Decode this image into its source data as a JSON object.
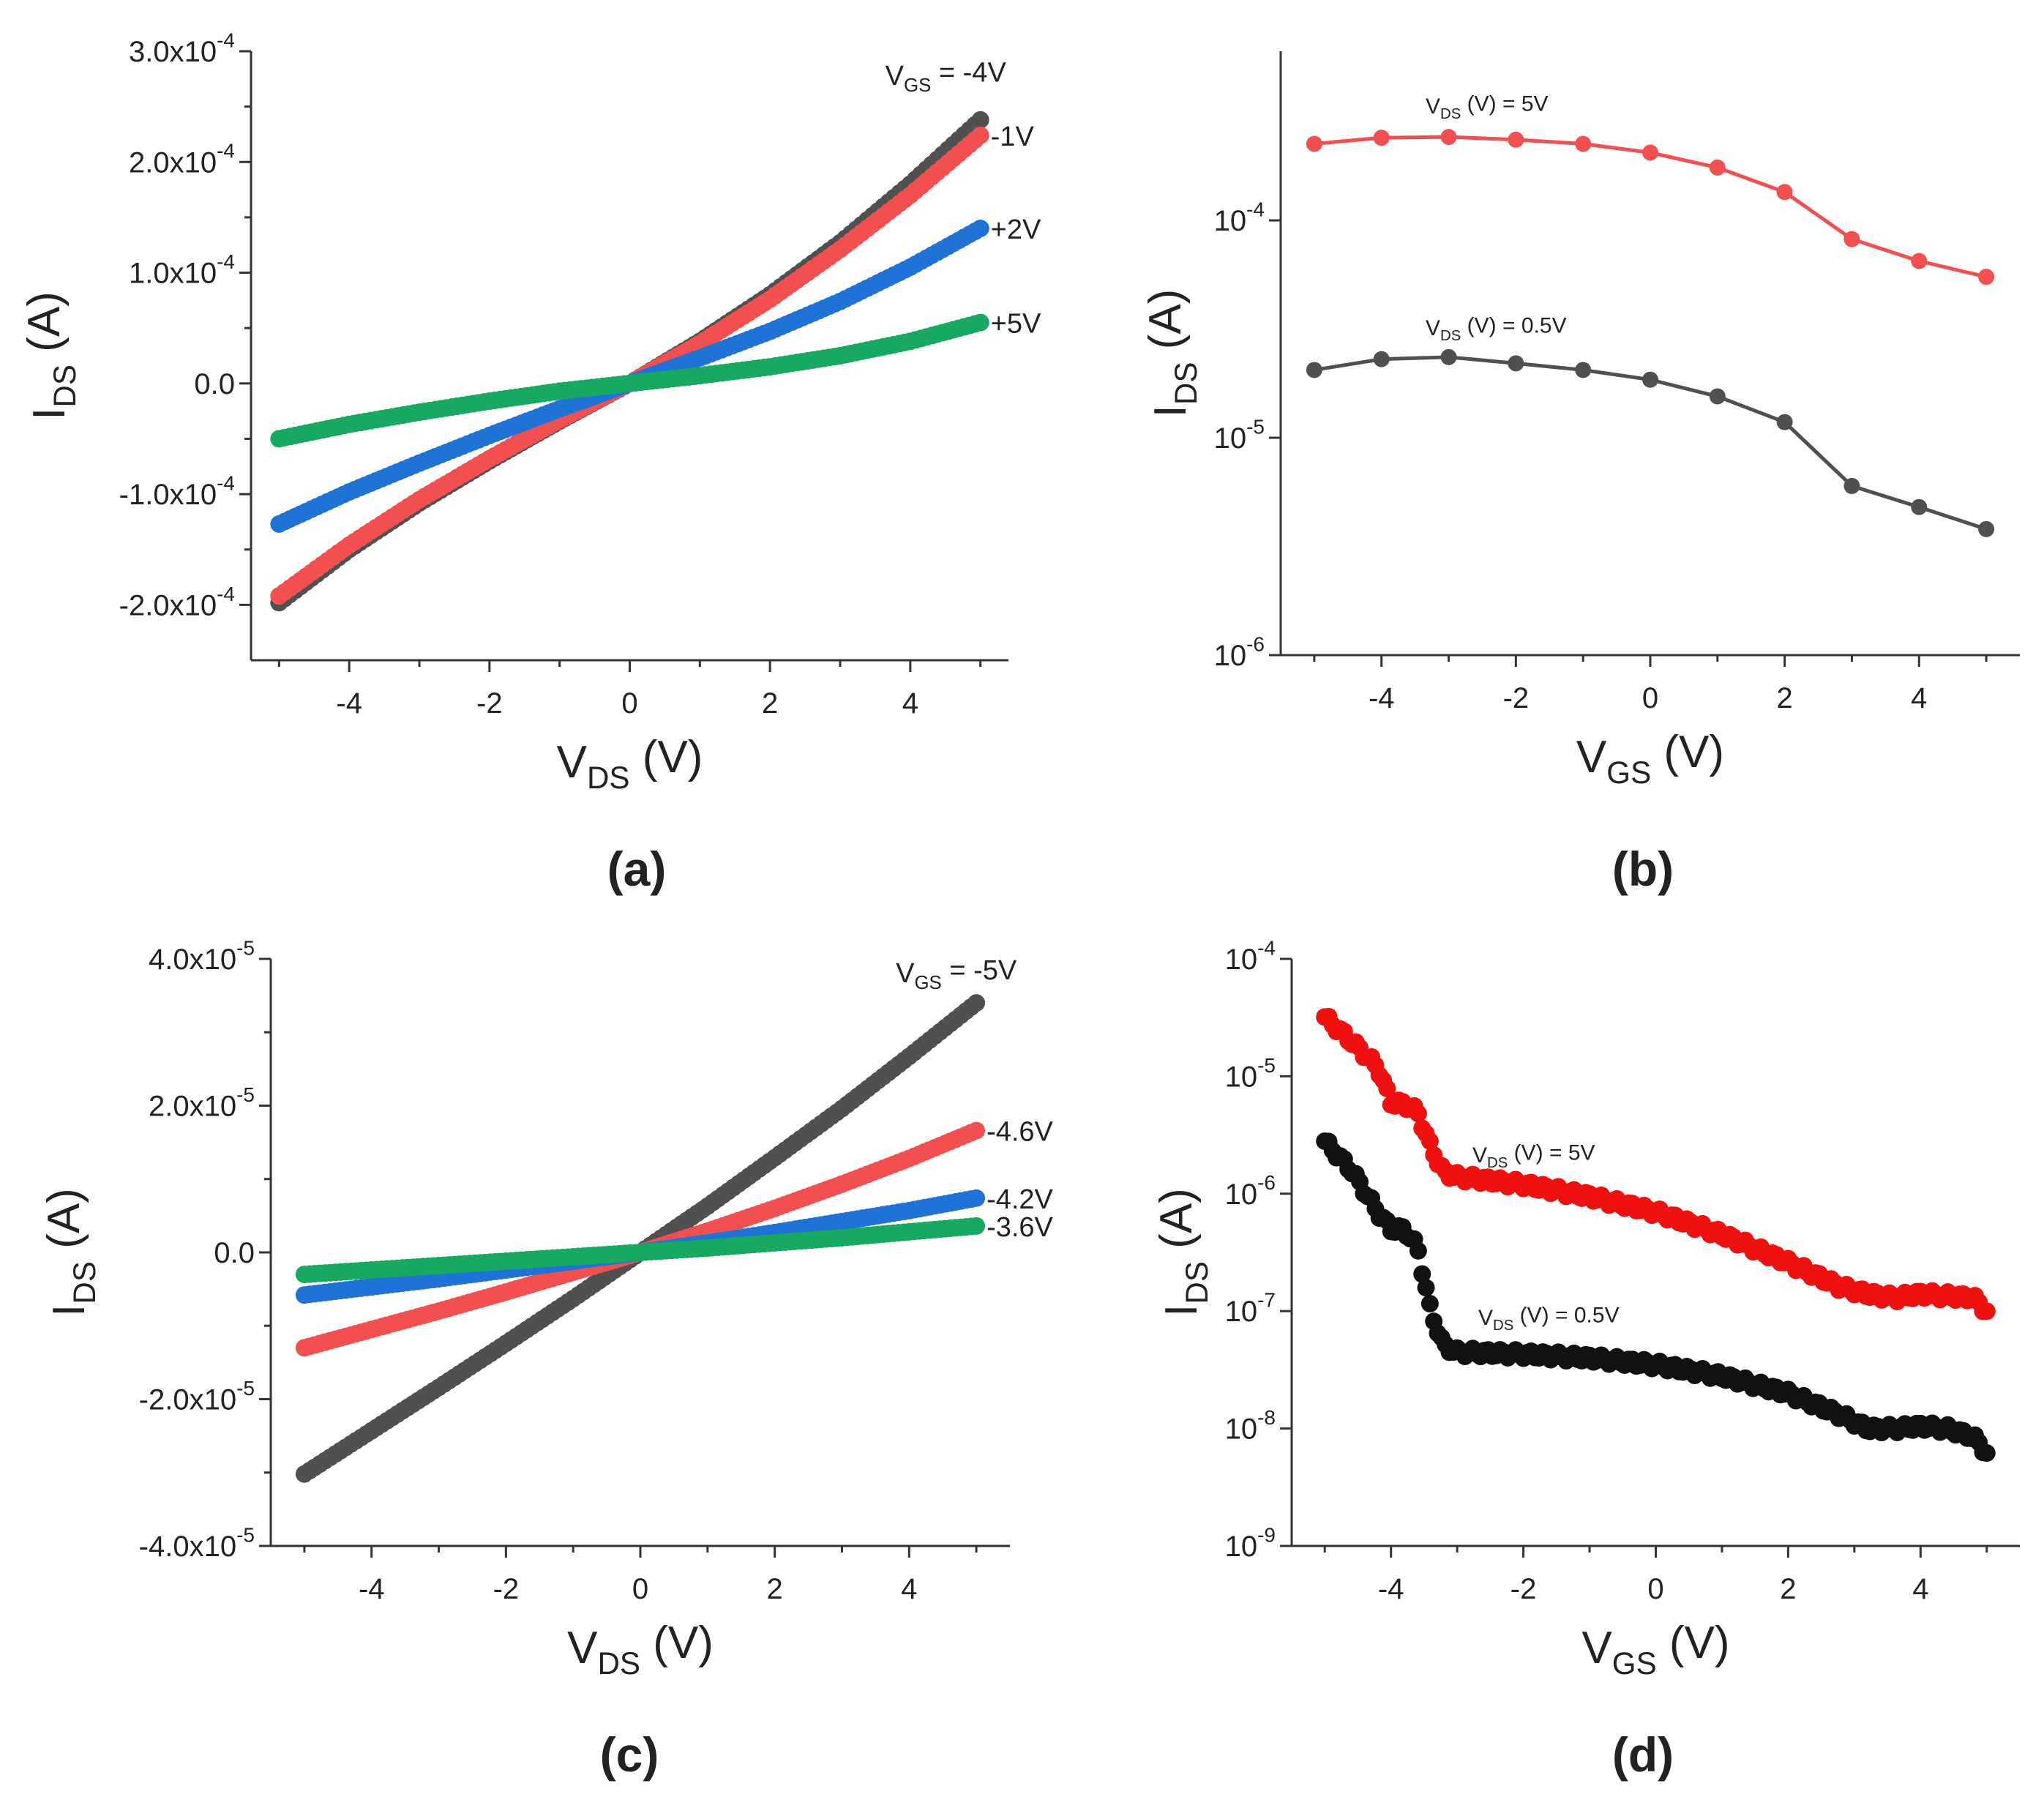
{
  "colors": {
    "black": "#505050",
    "black_d": "#111111",
    "red": "#f25050",
    "red_d": "#ef1010",
    "blue": "#1f73d6",
    "green": "#17a862",
    "axis": "#333333"
  },
  "chart_data": [
    {
      "id": "a",
      "type": "scatter",
      "panel_label": "(a)",
      "xlabel": "V_DS (V)",
      "ylabel": "I_DS (A)",
      "xlim": [
        -5.4,
        5.4
      ],
      "ylim": [
        -0.00025,
        0.0003
      ],
      "yscale": "linear",
      "x_ticks": [
        -4,
        -2,
        0,
        2,
        4
      ],
      "x_tick_labels": [
        "-4",
        "-2",
        "0",
        "2",
        "4"
      ],
      "y_ticks": [
        -0.0002,
        -0.0001,
        0,
        0.0001,
        0.0002,
        0.0003
      ],
      "y_tick_labels": [
        {
          "mantissa": "-2.0x10",
          "exp": "-4"
        },
        {
          "mantissa": "-1.0x10",
          "exp": "-4"
        },
        {
          "mantissa": "0.0",
          "exp": ""
        },
        {
          "mantissa": "1.0x10",
          "exp": "-4"
        },
        {
          "mantissa": "2.0x10",
          "exp": "-4"
        },
        {
          "mantissa": "3.0x10",
          "exp": "-4"
        }
      ],
      "series": [
        {
          "name": "V_GS = -4V",
          "label": "V_GS = -4V",
          "color": "black",
          "x": [
            -5,
            -4,
            -3,
            -2,
            -1,
            0,
            1,
            2,
            3,
            4,
            5
          ],
          "y": [
            -0.000198,
            -0.00015,
            -0.000108,
            -7e-05,
            -3.4e-05,
            0,
            3.8e-05,
            8e-05,
            0.000127,
            0.00018,
            0.000238
          ]
        },
        {
          "name": "-1V",
          "label": "-1V",
          "color": "red",
          "x": [
            -5,
            -4,
            -3,
            -2,
            -1,
            0,
            1,
            2,
            3,
            4,
            5
          ],
          "y": [
            -0.000192,
            -0.000146,
            -0.000105,
            -6.8e-05,
            -3.3e-05,
            0,
            3.6e-05,
            7.6e-05,
            0.000121,
            0.00017,
            0.000224
          ]
        },
        {
          "name": "+2V",
          "label": "+2V",
          "color": "blue",
          "x": [
            -5,
            -4,
            -3,
            -2,
            -1,
            0,
            1,
            2,
            3,
            4,
            5
          ],
          "y": [
            -0.000127,
            -9.8e-05,
            -7.2e-05,
            -4.7e-05,
            -2.3e-05,
            0,
            2.3e-05,
            4.7e-05,
            7.4e-05,
            0.000105,
            0.00014
          ]
        },
        {
          "name": "+5V",
          "label": "+5V",
          "color": "green",
          "x": [
            -5,
            -4,
            -3,
            -2,
            -1,
            0,
            1,
            2,
            3,
            4,
            5
          ],
          "y": [
            -5e-05,
            -3.7e-05,
            -2.6e-05,
            -1.6e-05,
            -7e-06,
            0,
            7e-06,
            1.5e-05,
            2.5e-05,
            3.8e-05,
            5.5e-05
          ]
        }
      ]
    },
    {
      "id": "b",
      "type": "line",
      "panel_label": "(b)",
      "xlabel": "V_GS (V)",
      "ylabel": "I_DS (A)",
      "xlim": [
        -5.5,
        5.5
      ],
      "ylim": [
        1e-06,
        0.0006
      ],
      "yscale": "log",
      "x_ticks": [
        -4,
        -2,
        0,
        2,
        4
      ],
      "x_tick_labels": [
        "-4",
        "-2",
        "0",
        "2",
        "4"
      ],
      "y_ticks": [
        1e-06,
        1e-05,
        0.0001
      ],
      "y_tick_labels": [
        {
          "mantissa": "10",
          "exp": "-6"
        },
        {
          "mantissa": "10",
          "exp": "-5"
        },
        {
          "mantissa": "10",
          "exp": "-4"
        }
      ],
      "series": [
        {
          "name": "V_DS (V) = 5V",
          "label": "V_DS (V) = 5V",
          "color": "red",
          "x": [
            -5,
            -4,
            -3,
            -2,
            -1,
            0,
            1,
            2,
            3,
            4,
            5
          ],
          "y": [
            0.000225,
            0.00024,
            0.000242,
            0.000235,
            0.000225,
            0.000205,
            0.000175,
            0.000135,
            8.2e-05,
            6.5e-05,
            5.5e-05
          ]
        },
        {
          "name": "V_DS (V) = 0.5V",
          "label": "V_DS (V) = 0.5V",
          "color": "black",
          "x": [
            -5,
            -4,
            -3,
            -2,
            -1,
            0,
            1,
            2,
            3,
            4,
            5
          ],
          "y": [
            2.05e-05,
            2.3e-05,
            2.35e-05,
            2.2e-05,
            2.05e-05,
            1.85e-05,
            1.55e-05,
            1.18e-05,
            6e-06,
            4.8e-06,
            3.8e-06
          ]
        }
      ]
    },
    {
      "id": "c",
      "type": "scatter",
      "panel_label": "(c)",
      "xlabel": "V_DS (V)",
      "ylabel": "I_DS (A)",
      "xlim": [
        -5.5,
        5.5
      ],
      "ylim": [
        -4e-05,
        4e-05
      ],
      "yscale": "linear",
      "x_ticks": [
        -4,
        -2,
        0,
        2,
        4
      ],
      "x_tick_labels": [
        "-4",
        "-2",
        "0",
        "2",
        "4"
      ],
      "y_ticks": [
        -4e-05,
        -2e-05,
        0,
        2e-05,
        4e-05
      ],
      "y_tick_labels": [
        {
          "mantissa": "-4.0x10",
          "exp": "-5"
        },
        {
          "mantissa": "-2.0x10",
          "exp": "-5"
        },
        {
          "mantissa": "0.0",
          "exp": ""
        },
        {
          "mantissa": "2.0x10",
          "exp": "-5"
        },
        {
          "mantissa": "4.0x10",
          "exp": "-5"
        }
      ],
      "series": [
        {
          "name": "V_GS = -5V",
          "label": "V_GS = -5V",
          "color": "black",
          "x": [
            -5,
            -4,
            -3,
            -2,
            -1,
            0,
            1,
            2,
            3,
            4,
            5
          ],
          "y": [
            -3.02e-05,
            -2.43e-05,
            -1.84e-05,
            -1.24e-05,
            -6.3e-06,
            0,
            6.3e-06,
            1.29e-05,
            1.96e-05,
            2.67e-05,
            3.4e-05
          ]
        },
        {
          "name": "-4.6V",
          "label": "-4.6V",
          "color": "red",
          "x": [
            -5,
            -4,
            -3,
            -2,
            -1,
            0,
            1,
            2,
            3,
            4,
            5
          ],
          "y": [
            -1.3e-05,
            -1.05e-05,
            -8e-06,
            -5.4e-06,
            -2.7e-06,
            0,
            2.9e-06,
            6e-06,
            9.3e-06,
            1.28e-05,
            1.66e-05
          ]
        },
        {
          "name": "-4.2V",
          "label": "-4.2V",
          "color": "blue",
          "x": [
            -5,
            -4,
            -3,
            -2,
            -1,
            0,
            1,
            2,
            3,
            4,
            5
          ],
          "y": [
            -5.8e-06,
            -4.7e-06,
            -3.6e-06,
            -2.4e-06,
            -1.2e-06,
            0,
            1.3e-06,
            2.7e-06,
            4.2e-06,
            5.7e-06,
            7.4e-06
          ]
        },
        {
          "name": "-3.6V",
          "label": "-3.6V",
          "color": "green",
          "x": [
            -5,
            -4,
            -3,
            -2,
            -1,
            0,
            1,
            2,
            3,
            4,
            5
          ],
          "y": [
            -3e-06,
            -2.4e-06,
            -1.8e-06,
            -1.2e-06,
            -6e-07,
            0,
            6e-07,
            1.3e-06,
            2e-06,
            2.8e-06,
            3.6e-06
          ]
        }
      ]
    },
    {
      "id": "d",
      "type": "scatter",
      "panel_label": "(d)",
      "xlabel": "V_GS (V)",
      "ylabel": "I_DS (A)",
      "xlim": [
        -5.5,
        5.5
      ],
      "ylim": [
        1e-09,
        0.0001
      ],
      "yscale": "log",
      "x_ticks": [
        -4,
        -2,
        0,
        2,
        4
      ],
      "x_tick_labels": [
        "-4",
        "-2",
        "0",
        "2",
        "4"
      ],
      "y_ticks": [
        1e-09,
        1e-08,
        1e-07,
        1e-06,
        1e-05,
        0.0001
      ],
      "y_tick_labels": [
        {
          "mantissa": "10",
          "exp": "-9"
        },
        {
          "mantissa": "10",
          "exp": "-8"
        },
        {
          "mantissa": "10",
          "exp": "-7"
        },
        {
          "mantissa": "10",
          "exp": "-6"
        },
        {
          "mantissa": "10",
          "exp": "-5"
        },
        {
          "mantissa": "10",
          "exp": "-4"
        }
      ],
      "series": [
        {
          "name": "V_DS (V) = 5V",
          "label": "V_DS (V) = 5V",
          "color": "red_d",
          "x": [
            -5,
            -4.6,
            -4.2,
            -4.0,
            -3.8,
            -3.6,
            -3.4,
            -3.2,
            -3.0,
            -2.0,
            -1.0,
            0,
            1,
            2,
            2.8,
            3.2,
            3.6,
            4,
            4.4,
            4.8,
            5
          ],
          "y": [
            3.2e-05,
            2e-05,
            1.2e-05,
            6e-06,
            5.8e-06,
            5e-06,
            2.5e-06,
            1.5e-06,
            1.4e-06,
            1.2e-06,
            9.5e-07,
            7e-07,
            4.5e-07,
            2.6e-07,
            1.6e-07,
            1.4e-07,
            1.3e-07,
            1.4e-07,
            1.35e-07,
            1.3e-07,
            1e-07
          ]
        },
        {
          "name": "V_DS (V) = 0.5V",
          "label": "V_DS (V) = 0.5V",
          "color": "black_d",
          "x": [
            -5,
            -4.6,
            -4.2,
            -4.0,
            -3.8,
            -3.6,
            -3.4,
            -3.2,
            -3.0,
            -2.0,
            -1.0,
            0,
            1,
            2,
            2.8,
            3.2,
            3.6,
            4,
            4.4,
            4.8,
            5
          ],
          "y": [
            2.8e-06,
            1.6e-06,
            7e-07,
            5e-07,
            5e-07,
            3.5e-07,
            1e-07,
            5e-08,
            4.5e-08,
            4.3e-08,
            4e-08,
            3.5e-08,
            2.8e-08,
            2e-08,
            1.3e-08,
            1e-08,
            1e-08,
            1.05e-08,
            1e-08,
            8.5e-09,
            6.2e-09
          ]
        }
      ]
    }
  ]
}
